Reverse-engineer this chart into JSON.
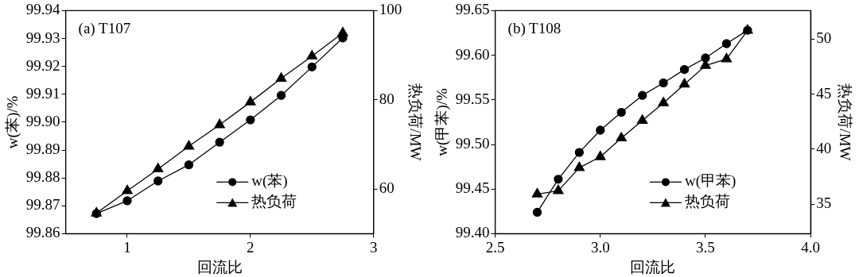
{
  "chart_data": [
    {
      "type": "line",
      "annotations": [
        "(a) T107"
      ],
      "xlabel": "回流比",
      "ylabel": "w(苯)/%",
      "y2label": "热负荷/MW",
      "x": [
        0.75,
        1,
        1.25,
        1.5,
        1.75,
        2,
        2.25,
        2.5,
        2.75
      ],
      "xlim": [
        0.5,
        3
      ],
      "xticks": [
        1,
        2,
        3
      ],
      "ylim": [
        99.86,
        99.94
      ],
      "yticks": [
        {
          "value": 99.86,
          "label": "99.86"
        },
        {
          "value": 99.87,
          "label": "99.87"
        },
        {
          "value": 99.88,
          "label": "99.88"
        },
        {
          "value": 99.89,
          "label": "99.89"
        },
        {
          "value": 99.9,
          "label": "99.90"
        },
        {
          "value": 99.91,
          "label": "99.91"
        },
        {
          "value": 99.92,
          "label": "99.92"
        },
        {
          "value": 99.93,
          "label": "99.93"
        },
        {
          "value": 99.94,
          "label": "99.94"
        }
      ],
      "y2lim": [
        50,
        100
      ],
      "y2ticks": [
        60,
        80,
        100
      ],
      "legend": "bottom right",
      "grid": false,
      "series": [
        {
          "name": "w(苯)",
          "color": "#000000",
          "marker": "circle",
          "values": [
            99.8672,
            99.8718,
            99.8789,
            99.8847,
            99.8928,
            99.9008,
            99.9096,
            99.9198,
            99.9302
          ]
        },
        {
          "name": "热负荷",
          "color": "#000000",
          "marker": "triangle",
          "axis": "y2",
          "values": [
            54.6,
            59.6,
            64.5,
            69.6,
            74.4,
            79.5,
            84.8,
            89.8,
            95.0
          ]
        }
      ]
    },
    {
      "type": "line",
      "annotations": [
        "(b) T108"
      ],
      "xlabel": "回流比",
      "ylabel": "w(甲苯)/%",
      "y2label": "热负荷/MW",
      "x": [
        2.7,
        2.8,
        2.9,
        3.0,
        3.1,
        3.2,
        3.3,
        3.4,
        3.5,
        3.6,
        3.7
      ],
      "xlim": [
        2.5,
        4
      ],
      "xticks": [
        {
          "value": 2.5,
          "label": "2.5"
        },
        {
          "value": 3,
          "label": "3.0"
        },
        {
          "value": 3.5,
          "label": "3.5"
        },
        {
          "value": 4,
          "label": "4.0"
        }
      ],
      "ylim": [
        99.4,
        99.65
      ],
      "yticks": [
        {
          "value": 99.4,
          "label": "99.40"
        },
        {
          "value": 99.45,
          "label": "99.45"
        },
        {
          "value": 99.5,
          "label": "99.50"
        },
        {
          "value": 99.55,
          "label": "99.55"
        },
        {
          "value": 99.6,
          "label": "99.60"
        },
        {
          "value": 99.65,
          "label": "99.65"
        }
      ],
      "y2lim": [
        32.3,
        52.6
      ],
      "y2ticks": [
        35,
        40,
        45,
        50
      ],
      "legend": "bottom right",
      "grid": false,
      "series": [
        {
          "name": "w(甲苯)",
          "color": "#000000",
          "marker": "circle",
          "values": [
            99.424,
            99.461,
            99.491,
            99.516,
            99.536,
            99.555,
            99.569,
            99.584,
            99.597,
            99.613,
            99.628
          ]
        },
        {
          "name": "热负荷",
          "color": "#000000",
          "marker": "triangle",
          "axis": "y2",
          "values": [
            35.9,
            36.2,
            38.3,
            39.3,
            41.0,
            42.6,
            44.2,
            45.9,
            47.6,
            48.2,
            50.8
          ]
        }
      ]
    }
  ]
}
